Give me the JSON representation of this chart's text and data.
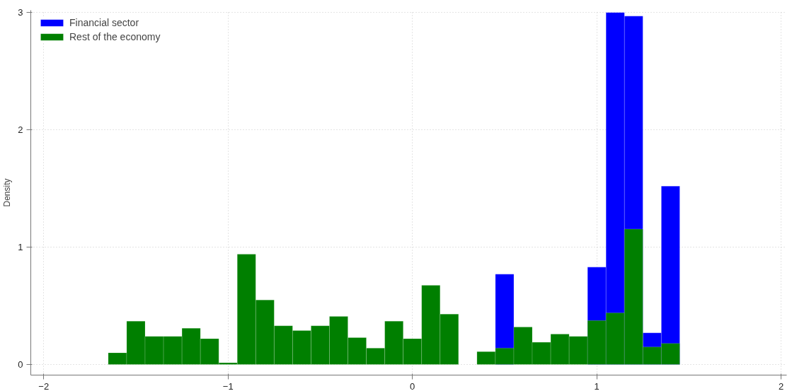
{
  "chart_data": {
    "type": "histogram",
    "ylabel": "Density",
    "bins": [
      -1.65,
      -1.55,
      -1.45,
      -1.35,
      -1.25,
      -1.15,
      -1.05,
      -0.95,
      -0.85,
      -0.75,
      -0.65,
      -0.55,
      -0.45,
      -0.35,
      -0.25,
      -0.15,
      -0.05,
      0.05,
      0.15,
      0.25,
      0.35,
      0.45,
      0.55,
      0.65,
      0.75,
      0.85,
      0.95,
      1.05,
      1.15,
      1.25,
      1.35,
      1.45
    ],
    "series": [
      {
        "name": "Financial sector",
        "color": "#0000ff",
        "values": [
          null,
          null,
          null,
          null,
          null,
          null,
          null,
          null,
          null,
          null,
          null,
          null,
          null,
          null,
          null,
          null,
          null,
          null,
          null,
          null,
          null,
          0.77,
          null,
          null,
          null,
          null,
          0.83,
          3.0,
          2.97,
          0.27,
          1.52
        ]
      },
      {
        "name": "Rest of the economy",
        "color": "#007f00",
        "values": [
          0.1,
          0.37,
          0.24,
          0.24,
          0.31,
          0.22,
          0.015,
          0.94,
          0.55,
          0.33,
          0.29,
          0.33,
          0.41,
          0.23,
          0.14,
          0.37,
          0.22,
          0.675,
          0.43,
          0,
          0.11,
          0.14,
          0.32,
          0.19,
          0.26,
          0.24,
          0.375,
          0.44,
          1.155,
          0.15,
          0.18
        ]
      }
    ],
    "xlim": [
      -2.07,
      2.03
    ],
    "ylim": [
      -0.09,
      3.02
    ],
    "xticks": [
      -2,
      -1,
      0,
      1,
      2
    ],
    "yticks": [
      0,
      1,
      2,
      3
    ],
    "grid": true,
    "legend": "top left"
  }
}
